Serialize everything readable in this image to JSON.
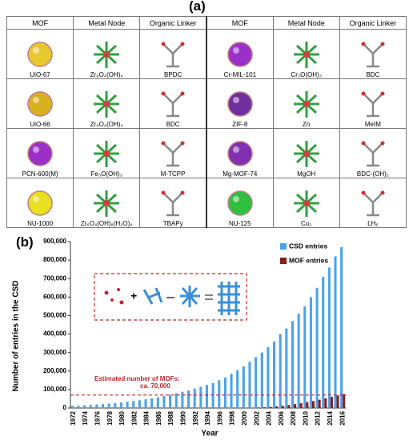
{
  "label_a": "(a)",
  "table": {
    "header": [
      "MOF",
      "Metal Node",
      "Organic Linker"
    ],
    "left_rows": [
      [
        "UiO-67",
        "Zr₆O₄(OH)₄",
        "BPDC"
      ],
      [
        "UiO-66",
        "Zr₆O₄(OH)₄",
        "BDC"
      ],
      [
        "PCN-600(M)",
        "Fe₃O(OH)₃",
        "M-TCPP"
      ],
      [
        "NU-1000",
        "Zr₆O₄(OH)₈(H₂O)₄",
        "TBAPy"
      ]
    ],
    "right_rows": [
      [
        "Cr-MIL-101",
        "Cr₃O(OH)₃",
        "BDC"
      ],
      [
        "ZIF-8",
        "Zn",
        "MeIM"
      ],
      [
        "Mg-MOF-74",
        "MgOH",
        "BDC-(OH)₂"
      ],
      [
        "NU-125",
        "Cu₂",
        "LH₆"
      ]
    ]
  },
  "label_b": "(b)",
  "chart_data": {
    "type": "bar",
    "x_label": "Year",
    "y_label": "Number of entries in the CSD",
    "categories": [
      "1972",
      null,
      "1974",
      null,
      "1976",
      null,
      "1978",
      null,
      "1980",
      null,
      "1982",
      null,
      "1984",
      null,
      "1986",
      null,
      "1988",
      null,
      "1990",
      null,
      "1992",
      null,
      "1994",
      null,
      "1996",
      null,
      "1998",
      null,
      "2000",
      null,
      "2002",
      null,
      "2004",
      null,
      "2006",
      null,
      "2008",
      null,
      "2010",
      null,
      "2012",
      null,
      "2014",
      null,
      "2016"
    ],
    "series": [
      {
        "name": "CSD entries",
        "color": "#4aa3e8",
        "values": [
          12000,
          13000,
          15000,
          17000,
          19000,
          21000,
          24000,
          27000,
          30000,
          34000,
          38000,
          42000,
          47000,
          52000,
          58000,
          65000,
          72000,
          80000,
          88000,
          95000,
          105000,
          115000,
          125000,
          135000,
          150000,
          165000,
          185000,
          205000,
          225000,
          250000,
          275000,
          300000,
          330000,
          360000,
          400000,
          430000,
          470000,
          510000,
          550000,
          600000,
          650000,
          710000,
          760000,
          820000,
          870000
        ]
      },
      {
        "name": "MOF entries",
        "color": "#8b1a1a",
        "values": [
          0,
          0,
          0,
          0,
          0,
          0,
          0,
          0,
          0,
          0,
          0,
          0,
          0,
          0,
          0,
          0,
          0,
          0,
          0,
          0,
          0,
          0,
          0,
          0,
          0,
          0,
          0,
          0,
          1000,
          2000,
          3000,
          4000,
          6000,
          9000,
          12000,
          16000,
          21000,
          26000,
          32000,
          38000,
          45000,
          52000,
          60000,
          68000,
          75000
        ]
      }
    ],
    "ylim": [
      0,
      900000
    ],
    "yticks": [
      0,
      {
        "value": 100000,
        "label": "100,000"
      },
      {
        "value": 200000,
        "label": "200,000"
      },
      {
        "value": 300000,
        "label": "300,000"
      },
      {
        "value": 400000,
        "label": "400,000"
      },
      {
        "value": 500000,
        "label": "500,000"
      },
      {
        "value": 600000,
        "label": "600,000"
      },
      {
        "value": 700000,
        "label": "700,000"
      },
      {
        "value": 800000,
        "label": "800,000"
      },
      {
        "value": 900000,
        "label": "900,000"
      }
    ],
    "legend": "top-right",
    "annotation": {
      "lines": [
        "Estimated number of MOFs:",
        "ca. 70,000"
      ],
      "value": 70000,
      "color": "#c0282d"
    }
  }
}
